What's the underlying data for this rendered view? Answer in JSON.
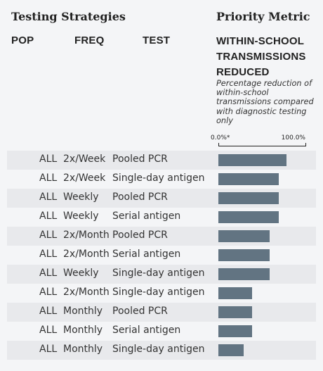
{
  "header": {
    "section_title": "Testing Strategies",
    "metric_title": "Priority Metric"
  },
  "columns": {
    "pop": "POP",
    "freq": "FREQ",
    "test": "TEST"
  },
  "metric": {
    "name": "WITHIN-SCHOOL TRANSMISSIONS REDUCED",
    "description": "Percentage reduction of within-school transmissions compared with diagnostic testing only"
  },
  "axis": {
    "min_label": "0.0%*",
    "max_label": "100.0%"
  },
  "chart_data": {
    "type": "bar",
    "orientation": "horizontal",
    "xlim": [
      0,
      100
    ],
    "axis_labels": [
      "0.0%*",
      "100.0%"
    ],
    "bar_color": "#627482",
    "rows": [
      {
        "pop": "ALL",
        "freq": "2x/Week",
        "test": "Pooled PCR",
        "value": 78
      },
      {
        "pop": "ALL",
        "freq": "2x/Week",
        "test": "Single-day antigen",
        "value": 69
      },
      {
        "pop": "ALL",
        "freq": "Weekly",
        "test": "Pooled PCR",
        "value": 69
      },
      {
        "pop": "ALL",
        "freq": "Weekly",
        "test": "Serial antigen",
        "value": 69
      },
      {
        "pop": "ALL",
        "freq": "2x/Month",
        "test": "Pooled PCR",
        "value": 59
      },
      {
        "pop": "ALL",
        "freq": "2x/Month",
        "test": "Serial antigen",
        "value": 59
      },
      {
        "pop": "ALL",
        "freq": "Weekly",
        "test": "Single-day antigen",
        "value": 59
      },
      {
        "pop": "ALL",
        "freq": "2x/Month",
        "test": "Single-day antigen",
        "value": 39
      },
      {
        "pop": "ALL",
        "freq": "Monthly",
        "test": "Pooled PCR",
        "value": 39
      },
      {
        "pop": "ALL",
        "freq": "Monthly",
        "test": "Serial antigen",
        "value": 39
      },
      {
        "pop": "ALL",
        "freq": "Monthly",
        "test": "Single-day antigen",
        "value": 29
      }
    ]
  }
}
